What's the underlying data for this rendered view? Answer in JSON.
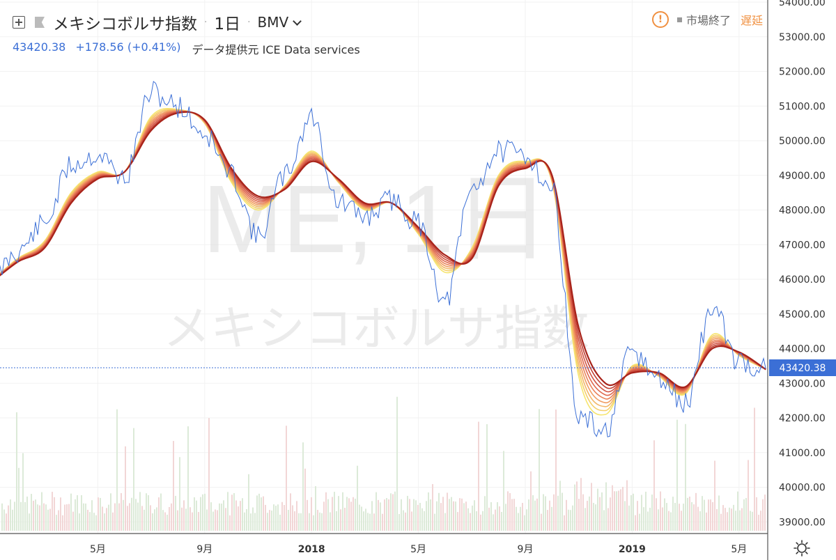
{
  "header": {
    "title": "メキシコボルサ指数",
    "resolution": "1日",
    "exchange": "BMV",
    "price": "43420.38",
    "change": "+178.56 (+0.41%)",
    "data_source": "データ提供元 ICE Data services",
    "market_status": "市場終了",
    "delay_label": "遅延"
  },
  "watermark": {
    "symbol": "ME, 1日",
    "name": "メキシコボルサ指数"
  },
  "colors": {
    "price_line": "#3b6fd6",
    "ribbon_fast": "#f6e56e",
    "ribbon_slow": "#a8231a",
    "volume": "#dcdcdc"
  },
  "chart_data": {
    "type": "line",
    "y_ticks": [
      "54000.00",
      "53000.00",
      "52000.00",
      "51000.00",
      "50000.00",
      "49000.00",
      "48000.00",
      "47000.00",
      "46000.00",
      "45000.00",
      "44000.00",
      "43000.00",
      "42000.00",
      "41000.00",
      "40000.00",
      "39000.00"
    ],
    "x_ticks": [
      "5月",
      "9月",
      "2018",
      "5月",
      "9月",
      "2019",
      "5月"
    ],
    "last_price_label": "43420.38",
    "last_price": 43420.38,
    "x": [
      "2017-01",
      "2017-02",
      "2017-03",
      "2017-04",
      "2017-05",
      "2017-06",
      "2017-07",
      "2017-08",
      "2017-09",
      "2017-10",
      "2017-11",
      "2017-12",
      "2018-01",
      "2018-02",
      "2018-03",
      "2018-04",
      "2018-05",
      "2018-06",
      "2018-07",
      "2018-08",
      "2018-09",
      "2018-10",
      "2018-11",
      "2018-12",
      "2019-01",
      "2019-02",
      "2019-03",
      "2019-04",
      "2019-05",
      "2019-06"
    ],
    "series": [
      {
        "values": [
          46000,
          46800,
          47600,
          49300,
          49600,
          48900,
          51400,
          51000,
          50200,
          49000,
          47200,
          49000,
          50700,
          48200,
          47800,
          48300,
          47600,
          45300,
          48600,
          49700,
          49600,
          48600,
          42000,
          41600,
          43900,
          43100,
          42400,
          45200,
          43600,
          43420
        ]
      },
      {
        "values": [
          45950,
          46600,
          47100,
          48500,
          49100,
          49100,
          50700,
          50900,
          50500,
          48800,
          48000,
          48700,
          49700,
          48800,
          48000,
          48200,
          47300,
          46200,
          46900,
          49000,
          49400,
          48800,
          43200,
          42100,
          43500,
          43200,
          42700,
          44400,
          43800,
          43400
        ]
      },
      {
        "values": [
          45900,
          46500,
          46900,
          48200,
          48900,
          49100,
          50300,
          50800,
          50600,
          49200,
          48400,
          48600,
          49400,
          48900,
          48200,
          48200,
          47500,
          46700,
          46600,
          48700,
          49200,
          49000,
          44600,
          43000,
          43300,
          43300,
          42900,
          44000,
          43900,
          43400
        ]
      }
    ]
  }
}
